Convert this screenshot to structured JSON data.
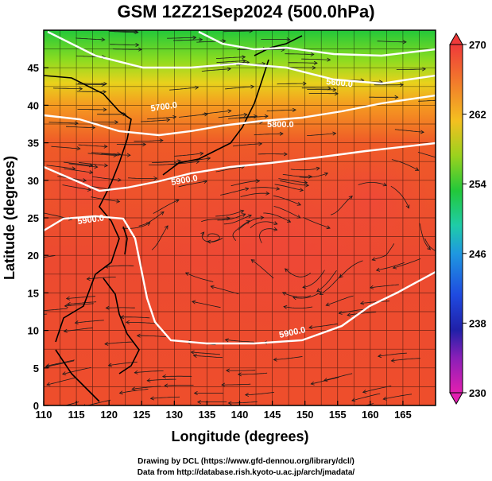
{
  "title": "GSM 12Z21Sep2024 (500.0hPa)",
  "x_axis": {
    "title": "Longitude (degrees)",
    "range": [
      110,
      170
    ],
    "ticks": [
      "110",
      "115",
      "120",
      "125",
      "130",
      "135",
      "140",
      "145",
      "150",
      "155",
      "160",
      "165"
    ]
  },
  "y_axis": {
    "title": "Latitude  (degrees)",
    "range": [
      0,
      50
    ],
    "ticks": [
      "0",
      "5",
      "10",
      "15",
      "20",
      "25",
      "30",
      "35",
      "40",
      "45"
    ]
  },
  "colorbar": {
    "range": [
      230,
      270
    ],
    "labels": [
      "270",
      "262",
      "254",
      "246",
      "238",
      "230"
    ]
  },
  "contours": [
    {
      "label": "5700.0",
      "color": "#ffffff"
    },
    {
      "label": "5800.0",
      "color": "#ffffff"
    },
    {
      "label": "5900.0",
      "color": "#ffffff"
    },
    {
      "label": "5900.0",
      "color": "#ffffff"
    },
    {
      "label": "5900.0",
      "color": "#ffffff"
    },
    {
      "label": "5600.0",
      "color": "#ffffff"
    }
  ],
  "credits": {
    "line1": "Drawing by DCL (https://www.gfd-dennou.org/library/dcl/)",
    "line2": "Data from http://database.rish.kyoto-u.ac.jp/arch/jmadata/"
  }
}
